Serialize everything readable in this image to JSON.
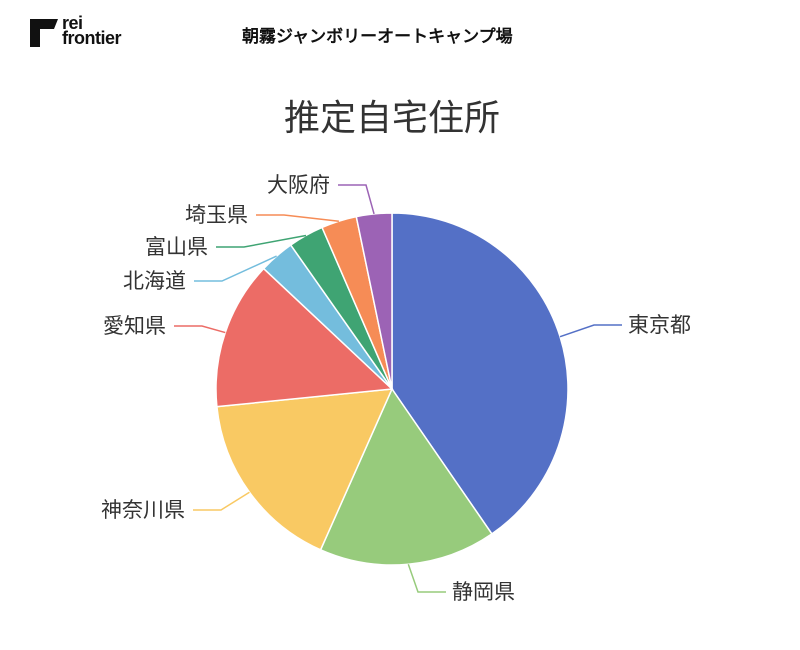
{
  "header": {
    "logo_line1": "rei",
    "logo_line2": "frontier",
    "title": "朝霧ジャンボリーオートキャンプ場"
  },
  "chart_data": {
    "type": "pie",
    "title": "推定自宅住所",
    "legend": "none",
    "slices": [
      {
        "label": "東京都",
        "value": 41.0,
        "color": "#5470C6"
      },
      {
        "label": "静岡県",
        "value": 16.5,
        "color": "#97CB7C"
      },
      {
        "label": "神奈川県",
        "value": 17.0,
        "color": "#F9C963"
      },
      {
        "label": "愛知県",
        "value": 13.8,
        "color": "#EC6C66"
      },
      {
        "label": "北海道",
        "value": 3.3,
        "color": "#74BDDD"
      },
      {
        "label": "富山県",
        "value": 3.3,
        "color": "#3FA473"
      },
      {
        "label": "埼玉県",
        "value": 3.3,
        "color": "#F68C56"
      },
      {
        "label": "大阪府",
        "value": 3.3,
        "color": "#9C63B5"
      }
    ]
  }
}
